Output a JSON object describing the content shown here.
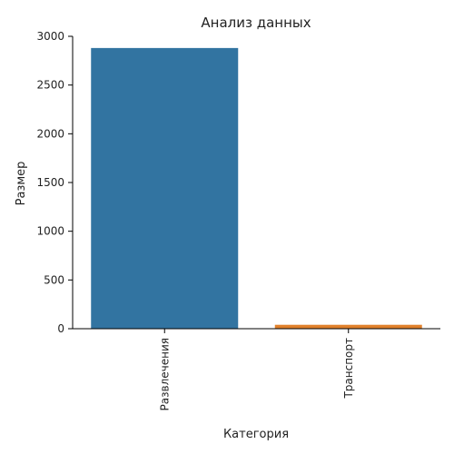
{
  "chart_data": {
    "type": "bar",
    "title": "Анализ данных",
    "xlabel": "Категория",
    "ylabel": "Размер",
    "categories": [
      "Развлечения",
      "Транспорт"
    ],
    "values": [
      2880,
      40
    ],
    "colors": [
      "#3274a1",
      "#e1812c"
    ],
    "ylim": [
      0,
      3000
    ],
    "yticks": [
      0,
      500,
      1000,
      1500,
      2000,
      2500,
      3000
    ],
    "ytick_labels": [
      "0",
      "500",
      "1000",
      "1500",
      "2000",
      "2500",
      "3000"
    ],
    "grid": false,
    "legend": "none"
  }
}
